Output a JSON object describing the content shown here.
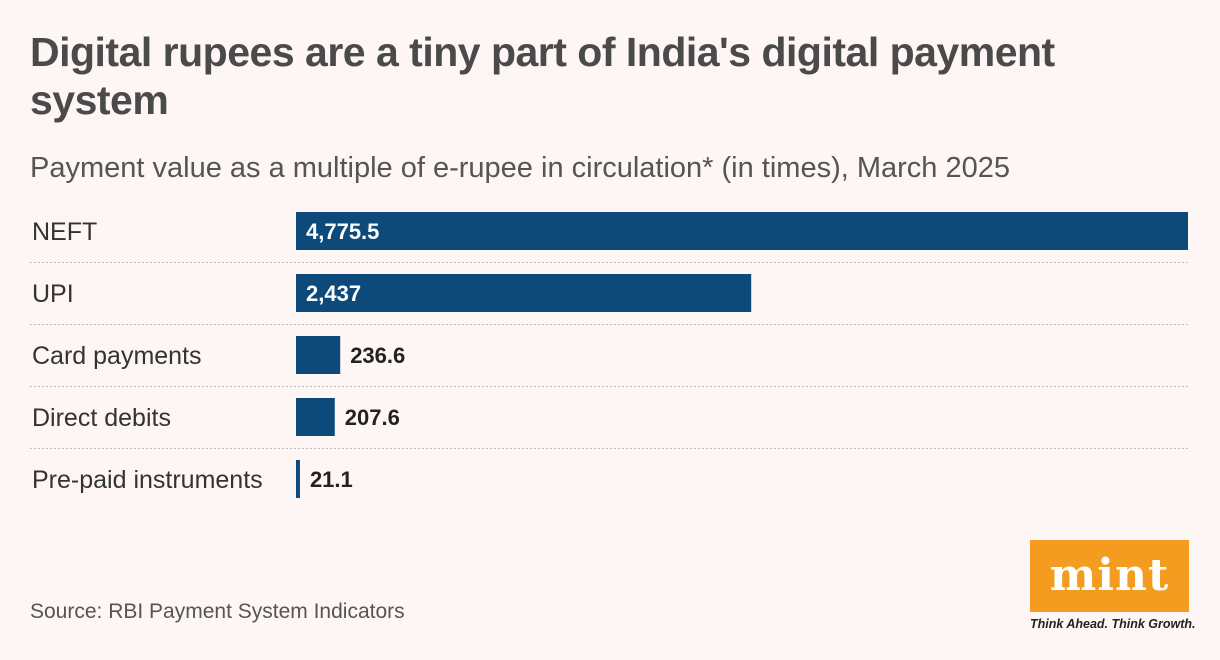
{
  "title": "Digital rupees are a tiny part of India's digital payment system",
  "subtitle": "Payment value as a multiple of e-rupee in circulation* (in times), March 2025",
  "source": "Source: RBI Payment System Indicators",
  "brand": {
    "logo_text": "mint",
    "tagline": "Think Ahead. Think Growth.",
    "logo_color": "#f39c1f"
  },
  "colors": {
    "bar": "#0d4a7a",
    "background": "#fdf6f4"
  },
  "chart_data": {
    "type": "bar",
    "orientation": "horizontal",
    "title": "Digital rupees are a tiny part of India's digital payment system",
    "subtitle": "Payment value as a multiple of e-rupee in circulation* (in times), March 2025",
    "xlabel": "",
    "ylabel": "",
    "xlim": [
      0,
      4775.5
    ],
    "grid": false,
    "categories": [
      "NEFT",
      "UPI",
      "Card payments",
      "Direct debits",
      "Pre-paid instruments"
    ],
    "values": [
      4775.5,
      2437,
      236.6,
      207.6,
      21.1
    ],
    "value_labels": [
      "4,775.5",
      "2,437",
      "236.6",
      "207.6",
      "21.1"
    ]
  }
}
